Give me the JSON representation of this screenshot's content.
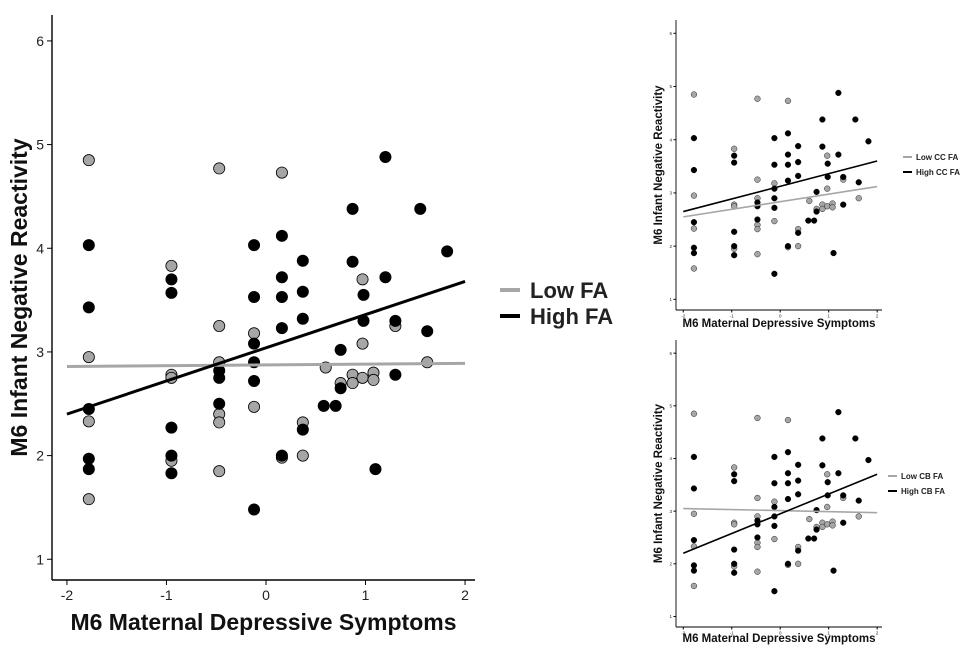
{
  "colors": {
    "low": "#a6a6a6",
    "high": "#000000"
  },
  "chart_data": [
    {
      "type": "scatter",
      "xlabel": "M6 Maternal Depressive Symptoms",
      "ylabel": "M6 Infant Negative Reactivity",
      "xlim": [
        -2.15,
        2.1
      ],
      "ylim": [
        0.8,
        6.25
      ],
      "xticks": [
        -2,
        -1,
        0,
        1,
        2
      ],
      "yticks": [
        1,
        2,
        3,
        4,
        5,
        6
      ],
      "legend_position": "right",
      "series": [
        {
          "name": "Low FA",
          "color": "#a6a6a6",
          "line": [
            [
              -2.0,
              2.86
            ],
            [
              2.0,
              2.89
            ]
          ],
          "points": [
            [
              -1.78,
              4.85
            ],
            [
              -1.78,
              2.95
            ],
            [
              -1.78,
              2.33
            ],
            [
              -1.78,
              1.58
            ],
            [
              -0.95,
              3.83
            ],
            [
              -0.95,
              2.78
            ],
            [
              -0.95,
              2.75
            ],
            [
              -0.95,
              1.95
            ],
            [
              -0.47,
              4.77
            ],
            [
              -0.47,
              3.25
            ],
            [
              -0.47,
              2.9
            ],
            [
              -0.47,
              2.4
            ],
            [
              -0.47,
              2.32
            ],
            [
              -0.47,
              1.85
            ],
            [
              -0.12,
              3.18
            ],
            [
              -0.12,
              2.47
            ],
            [
              0.16,
              4.73
            ],
            [
              0.16,
              1.98
            ],
            [
              0.37,
              2.32
            ],
            [
              0.37,
              2.0
            ],
            [
              0.6,
              2.85
            ],
            [
              0.75,
              2.7
            ],
            [
              0.87,
              2.78
            ],
            [
              0.87,
              2.7
            ],
            [
              0.97,
              3.7
            ],
            [
              0.97,
              3.08
            ],
            [
              0.97,
              2.75
            ],
            [
              1.08,
              2.8
            ],
            [
              1.08,
              2.73
            ],
            [
              1.3,
              3.25
            ],
            [
              1.62,
              2.9
            ]
          ]
        },
        {
          "name": "High FA",
          "color": "#000000",
          "line": [
            [
              -2.0,
              2.4
            ],
            [
              2.0,
              3.68
            ]
          ],
          "points": [
            [
              -1.78,
              4.03
            ],
            [
              -1.78,
              3.43
            ],
            [
              -1.78,
              2.45
            ],
            [
              -1.78,
              1.97
            ],
            [
              -1.78,
              1.87
            ],
            [
              -0.95,
              3.7
            ],
            [
              -0.95,
              3.57
            ],
            [
              -0.95,
              2.27
            ],
            [
              -0.95,
              2.0
            ],
            [
              -0.95,
              1.83
            ],
            [
              -0.47,
              2.82
            ],
            [
              -0.47,
              2.75
            ],
            [
              -0.47,
              2.5
            ],
            [
              -0.12,
              4.03
            ],
            [
              -0.12,
              3.53
            ],
            [
              -0.12,
              3.08
            ],
            [
              -0.12,
              2.9
            ],
            [
              -0.12,
              2.72
            ],
            [
              -0.12,
              1.48
            ],
            [
              0.16,
              4.12
            ],
            [
              0.16,
              3.72
            ],
            [
              0.16,
              3.53
            ],
            [
              0.16,
              3.23
            ],
            [
              0.16,
              2.0
            ],
            [
              0.37,
              3.88
            ],
            [
              0.37,
              3.58
            ],
            [
              0.37,
              3.32
            ],
            [
              0.37,
              2.25
            ],
            [
              0.58,
              2.48
            ],
            [
              0.7,
              2.48
            ],
            [
              0.75,
              3.02
            ],
            [
              0.75,
              2.65
            ],
            [
              0.87,
              4.38
            ],
            [
              0.87,
              3.87
            ],
            [
              0.98,
              3.55
            ],
            [
              0.98,
              3.3
            ],
            [
              1.1,
              1.87
            ],
            [
              1.2,
              4.88
            ],
            [
              1.2,
              3.72
            ],
            [
              1.3,
              3.3
            ],
            [
              1.3,
              2.78
            ],
            [
              1.55,
              4.38
            ],
            [
              1.62,
              3.2
            ],
            [
              1.82,
              3.97
            ]
          ]
        }
      ]
    },
    {
      "type": "scatter",
      "xlabel": "M6 Maternal Depressive Symptoms",
      "ylabel": "M6 Infant Negative Reactivity",
      "xlim": [
        -2.15,
        2.1
      ],
      "ylim": [
        0.8,
        6.25
      ],
      "xticks": [
        -2,
        -1,
        0,
        1,
        2
      ],
      "yticks": [
        1,
        2,
        3,
        4,
        5,
        6
      ],
      "legend_position": "right",
      "series": [
        {
          "name": "Low CC FA",
          "color": "#a6a6a6",
          "line": [
            [
              -2.0,
              2.55
            ],
            [
              2.0,
              3.12
            ]
          ]
        },
        {
          "name": "High CC FA",
          "color": "#000000",
          "line": [
            [
              -2.0,
              2.65
            ],
            [
              2.0,
              3.6
            ]
          ]
        }
      ]
    },
    {
      "type": "scatter",
      "xlabel": "M6 Maternal Depressive Symptoms",
      "ylabel": "M6 Infant Negative Reactivity",
      "xlim": [
        -2.15,
        2.1
      ],
      "ylim": [
        0.8,
        6.25
      ],
      "xticks": [
        -2,
        -1,
        0,
        1,
        2
      ],
      "yticks": [
        1,
        2,
        3,
        4,
        5,
        6
      ],
      "legend_position": "right",
      "series": [
        {
          "name": "Low CB FA",
          "color": "#a6a6a6",
          "line": [
            [
              -2.0,
              3.05
            ],
            [
              2.0,
              2.97
            ]
          ]
        },
        {
          "name": "High CB FA",
          "color": "#000000",
          "line": [
            [
              -2.0,
              2.2
            ],
            [
              2.0,
              3.7
            ]
          ]
        }
      ]
    }
  ]
}
